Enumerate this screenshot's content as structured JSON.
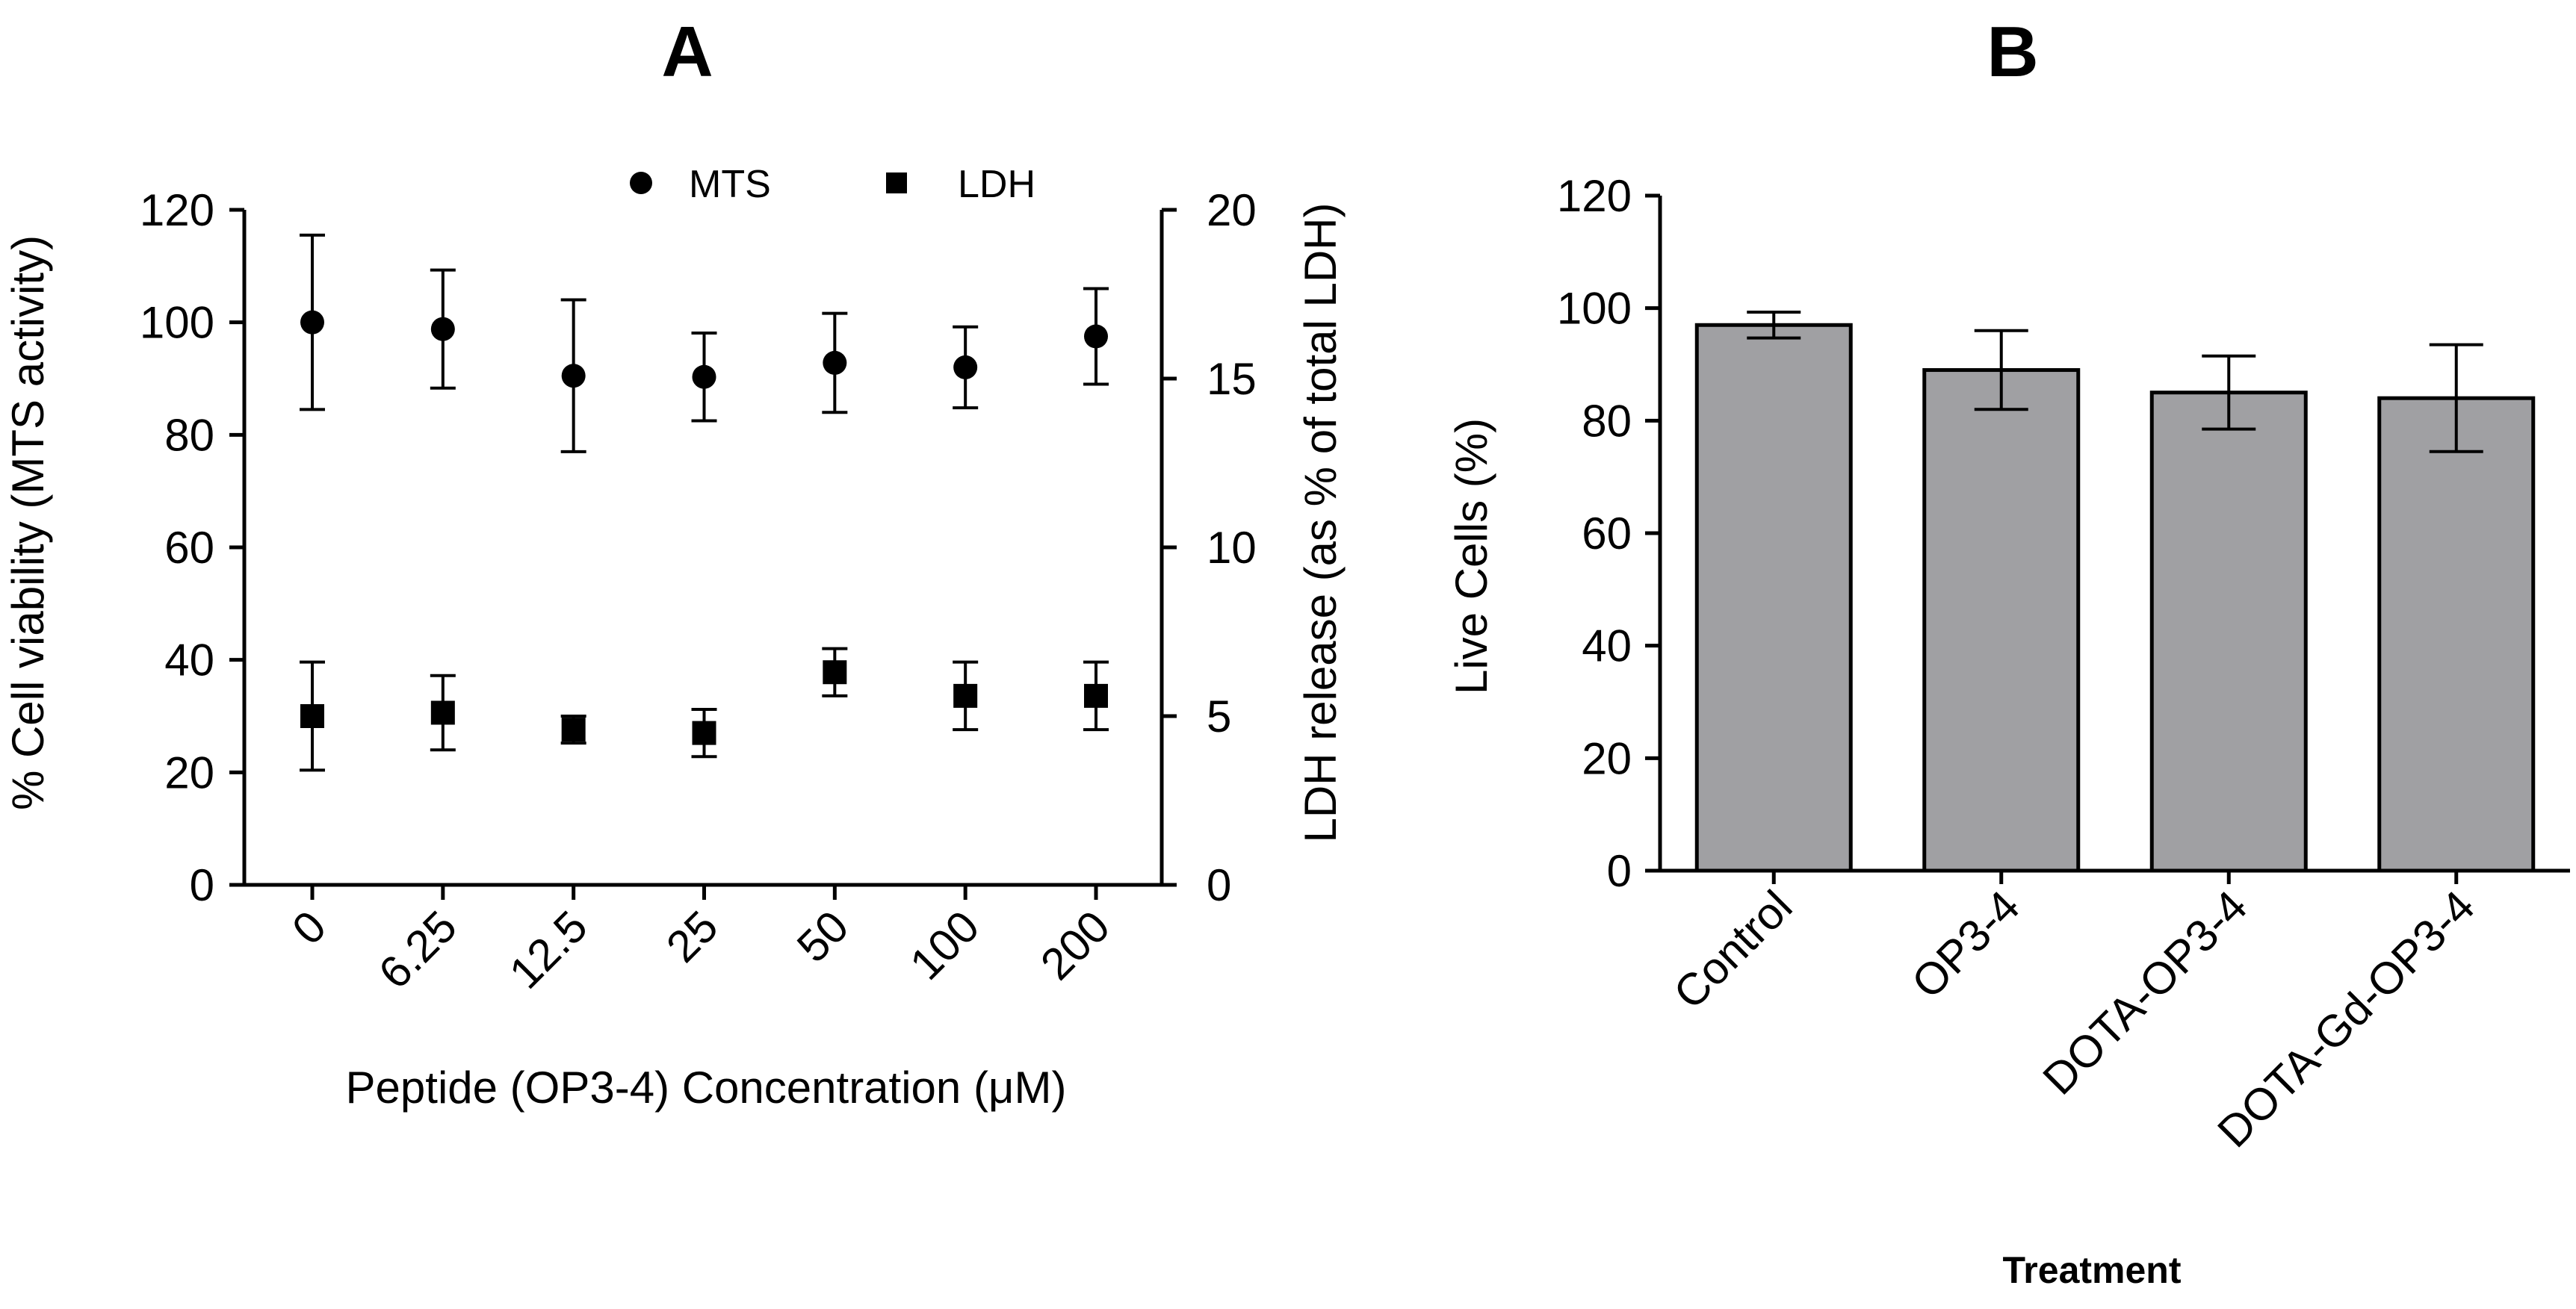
{
  "chart_data": [
    {
      "panel": "A",
      "type": "scatter",
      "xlabel": "Peptide (OP3-4) Concentration (μM)",
      "ylabel_left": "% Cell viability (MTS activity)",
      "ylabel_right": "LDH release  (as % of total LDH)",
      "categories": [
        "0",
        "6.25",
        "12.5",
        "25",
        "50",
        "100",
        "200"
      ],
      "ylim_left": [
        0,
        120
      ],
      "yticks_left": [
        0,
        20,
        40,
        60,
        80,
        100,
        120
      ],
      "ylim_right": [
        0,
        20
      ],
      "yticks_right": [
        0,
        5,
        10,
        15,
        20
      ],
      "grid": false,
      "legend_position": "top-center",
      "series": [
        {
          "name": "MTS",
          "axis": "left",
          "marker": "circle",
          "values": [
            100,
            98.8,
            90.5,
            90.3,
            92.8,
            92,
            97.5
          ],
          "errors": [
            15.5,
            10.5,
            13.5,
            7.8,
            8.8,
            7.2,
            8.5
          ]
        },
        {
          "name": "LDH",
          "axis": "right",
          "marker": "square",
          "values": [
            5,
            5.1,
            4.6,
            4.5,
            6.3,
            5.6,
            5.6
          ],
          "errors": [
            1.6,
            1.1,
            0.4,
            0.7,
            0.7,
            1.0,
            1.0
          ]
        }
      ]
    },
    {
      "panel": "B",
      "type": "bar",
      "xlabel": "Treatment",
      "ylabel": "Live Cells (%)",
      "categories": [
        "Control",
        "OP3-4",
        "DOTA-OP3-4",
        "DOTA-Gd-OP3-4"
      ],
      "values": [
        97,
        89,
        85,
        84
      ],
      "errors": [
        2.3,
        7,
        6.5,
        9.5
      ],
      "ylim": [
        0,
        120
      ],
      "yticks": [
        0,
        20,
        40,
        60,
        80,
        100,
        120
      ],
      "bar_color": "#a0a0a3",
      "grid": false
    }
  ]
}
